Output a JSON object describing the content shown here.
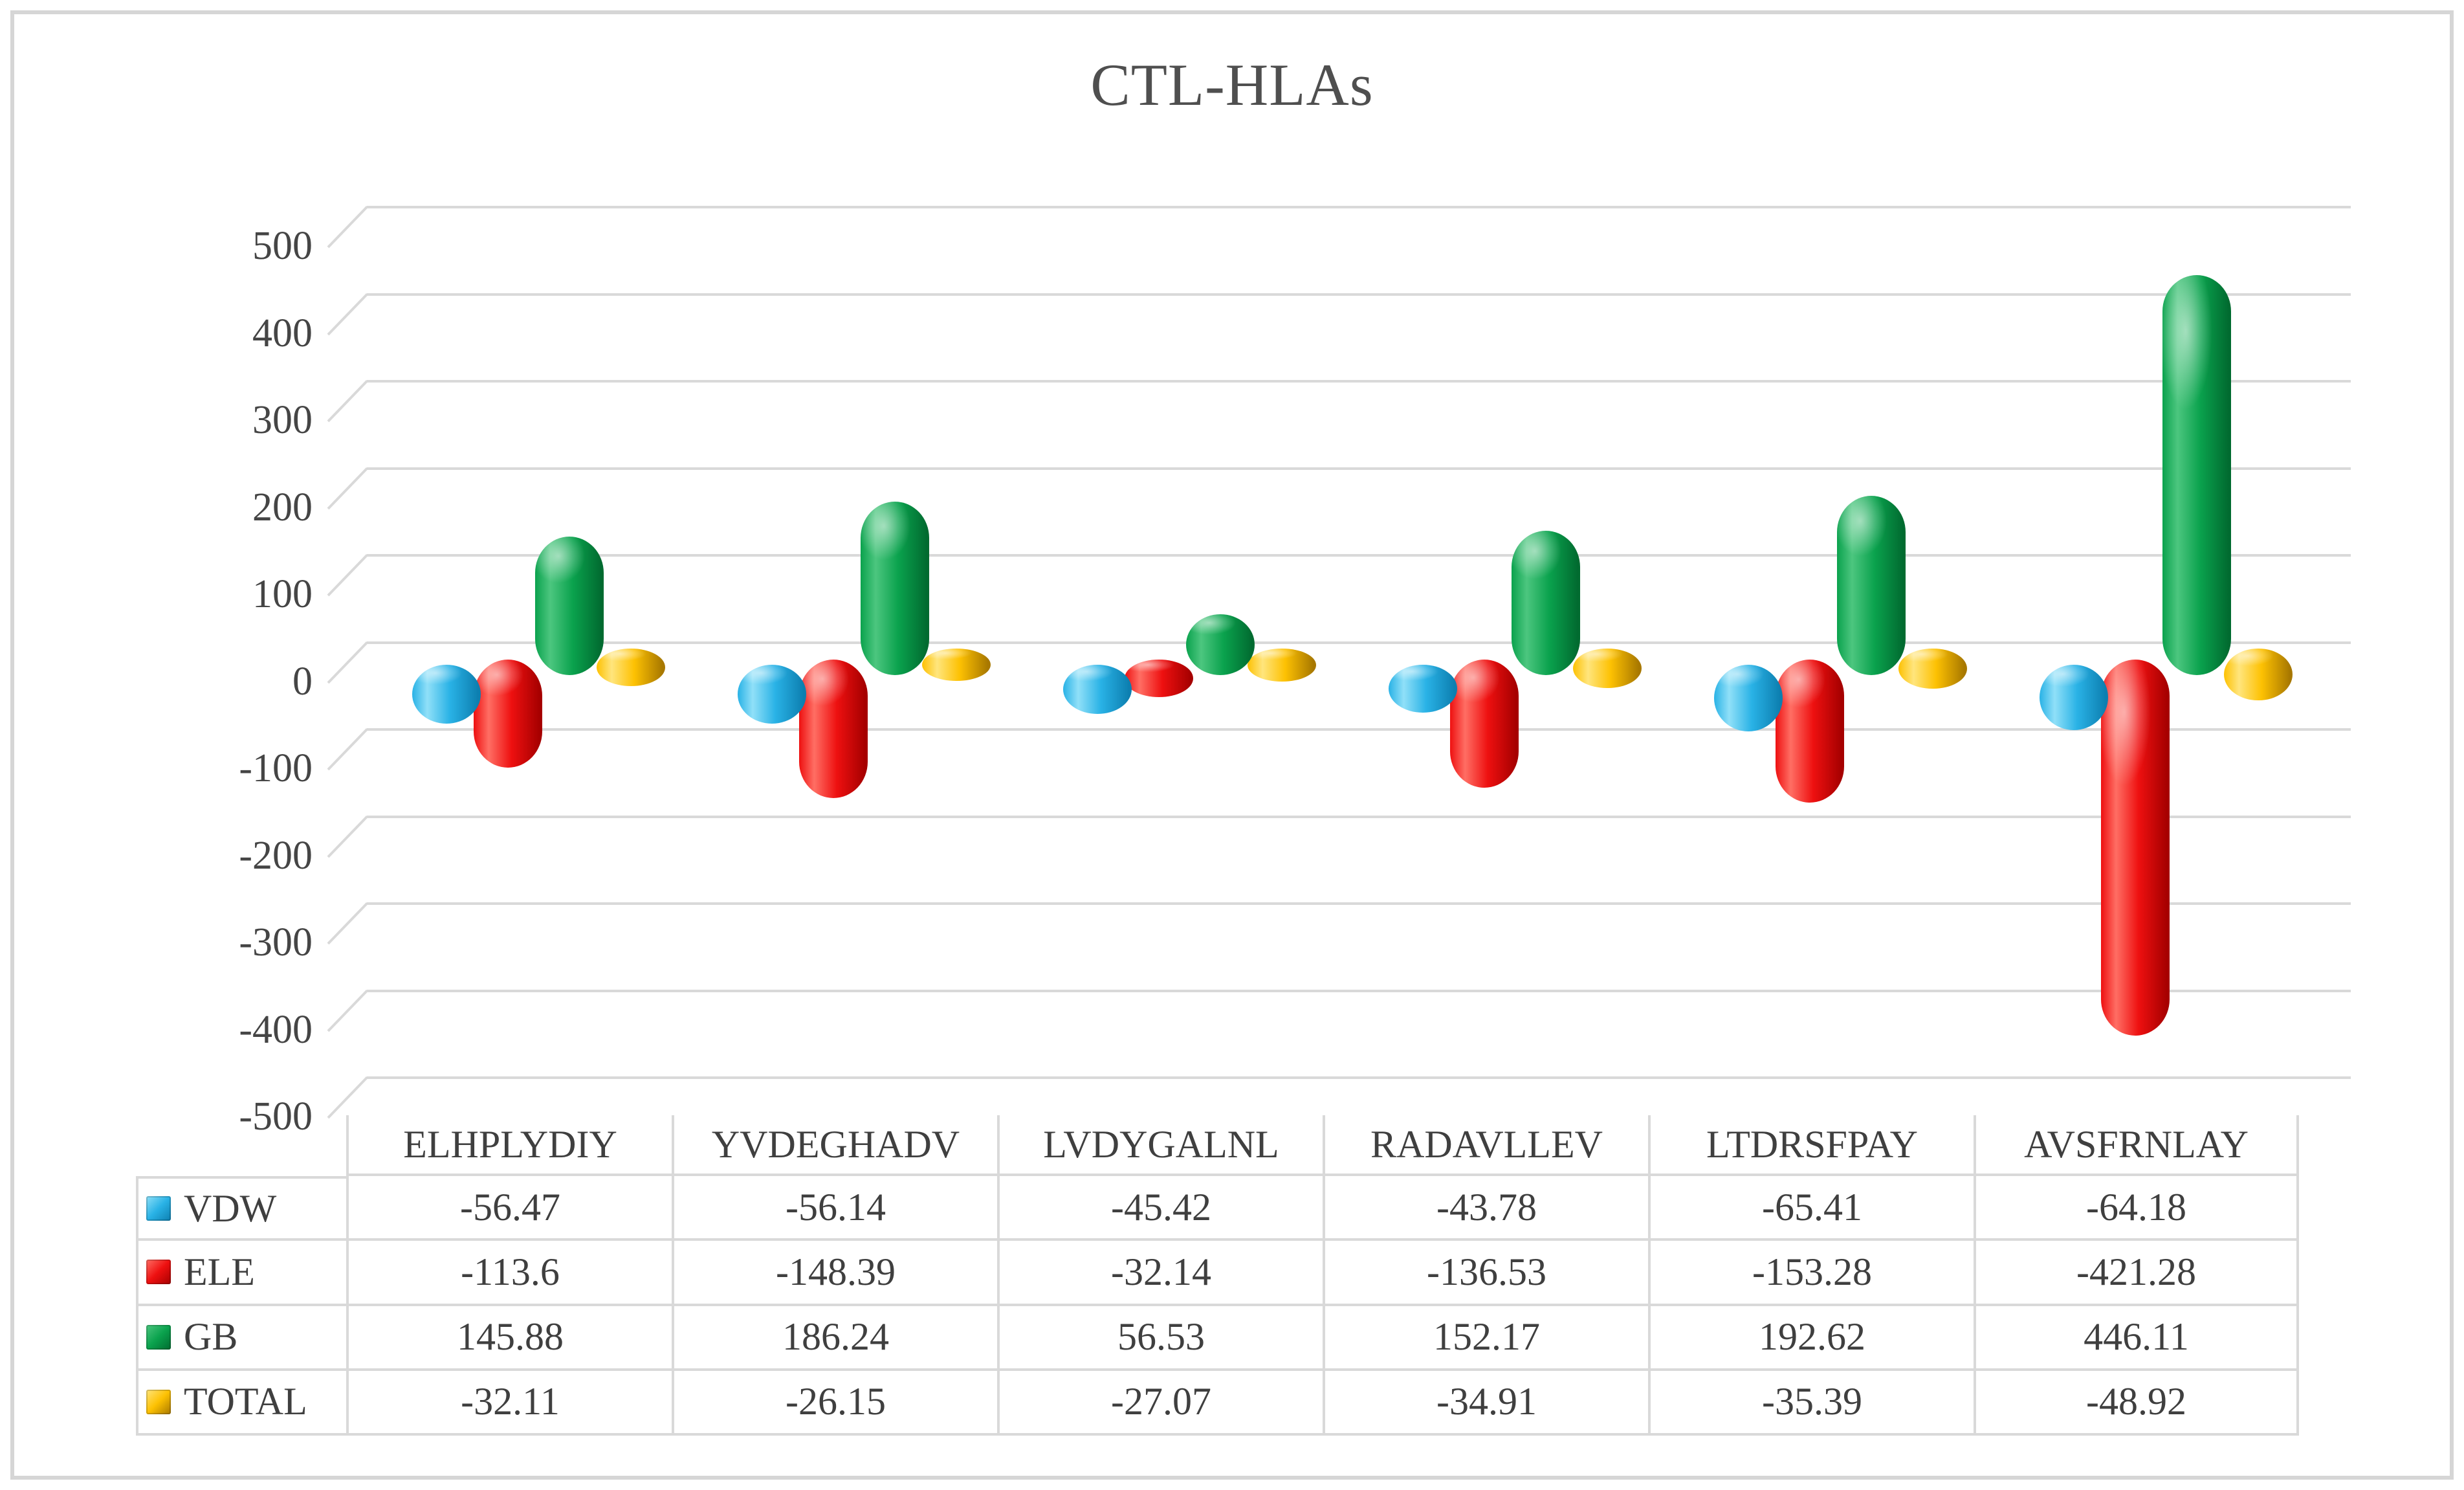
{
  "title": "CTL-HLAs",
  "y_axis": {
    "tick_labels": [
      "500",
      "400",
      "300",
      "200",
      "100",
      "0",
      "-100",
      "-200",
      "-300",
      "-400",
      "-500"
    ],
    "min": -500,
    "max": 500,
    "step": 100
  },
  "categories": [
    "ELHPLYDIY",
    "YVDEGHADV",
    "LVDYGALNL",
    "RADAVLLEV",
    "LTDRSFPAY",
    "AVSFRNLAY"
  ],
  "series": [
    {
      "name": "VDW",
      "values": [
        -56.47,
        -56.14,
        -45.42,
        -43.78,
        -65.41,
        -64.18
      ],
      "color": {
        "main": "#29b2e6",
        "light": "#90e0f8",
        "dark": "#0d7fb0"
      }
    },
    {
      "name": "ELE",
      "values": [
        -113.6,
        -148.39,
        -32.14,
        -136.53,
        -153.28,
        -421.28
      ],
      "color": {
        "main": "#ee1010",
        "light": "#ff6e64",
        "dark": "#a60000"
      }
    },
    {
      "name": "GB",
      "values": [
        145.88,
        186.24,
        56.53,
        152.17,
        192.62,
        446.11
      ],
      "color": {
        "main": "#0aa24d",
        "light": "#4cc67f",
        "dark": "#016b30"
      }
    },
    {
      "name": "TOTAL",
      "values": [
        -32.11,
        -26.15,
        -27.07,
        -34.91,
        -35.39,
        -48.92
      ],
      "color": {
        "main": "#fdc102",
        "light": "#ffe57d",
        "dark": "#a87800"
      }
    }
  ],
  "grid_color": "#d9d9d9",
  "chart_data": {
    "type": "bar",
    "subtype": "3d-cylinder-with-data-table",
    "title": "CTL-HLAs",
    "categories": [
      "ELHPLYDIY",
      "YVDEGHADV",
      "LVDYGALNL",
      "RADAVLLEV",
      "LTDRSFPAY",
      "AVSFRNLAY"
    ],
    "series": [
      {
        "name": "VDW",
        "values": [
          -56.47,
          -56.14,
          -45.42,
          -43.78,
          -65.41,
          -64.18
        ]
      },
      {
        "name": "ELE",
        "values": [
          -113.6,
          -148.39,
          -32.14,
          -136.53,
          -153.28,
          -421.28
        ]
      },
      {
        "name": "GB",
        "values": [
          145.88,
          186.24,
          56.53,
          152.17,
          192.62,
          446.11
        ]
      },
      {
        "name": "TOTAL",
        "values": [
          -32.11,
          -26.15,
          -27.07,
          -34.91,
          -35.39,
          -48.92
        ]
      }
    ],
    "xlabel": "",
    "ylabel": "",
    "ylim": [
      -500,
      500
    ],
    "ytick_step": 100,
    "grid": true,
    "legend_position": "data-table-left-column"
  }
}
